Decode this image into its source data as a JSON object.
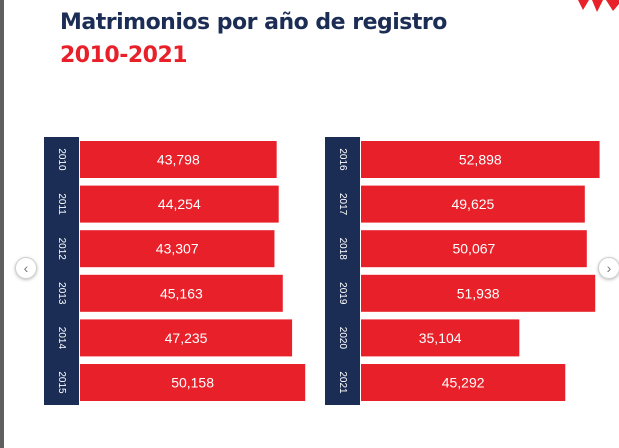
{
  "header": {
    "title": "Matrimonios por año de registro",
    "subtitle": "2010-2021"
  },
  "colors": {
    "navy": "#1c2d55",
    "bar": "#e8202a",
    "year_text": "#ffffff",
    "value_text": "#ffffff"
  },
  "controls": {
    "prev_icon": "chevron-left-icon",
    "prev_glyph": "‹",
    "next_icon": "chevron-right-icon",
    "next_glyph": "›"
  },
  "chart_data": [
    {
      "type": "bar",
      "orientation": "horizontal",
      "categories": [
        "2010",
        "2011",
        "2012",
        "2013",
        "2014",
        "2015"
      ],
      "values": [
        43798,
        44254,
        43307,
        45163,
        47235,
        50158
      ],
      "value_labels": [
        "43,798",
        "44,254",
        "43,307",
        "45,163",
        "47,235",
        "50,158"
      ],
      "title": "",
      "xlabel": "",
      "ylabel": ""
    },
    {
      "type": "bar",
      "orientation": "horizontal",
      "categories": [
        "2016",
        "2017",
        "2018",
        "2019",
        "2020",
        "2021"
      ],
      "values": [
        52898,
        49625,
        50067,
        51938,
        35104,
        45292
      ],
      "value_labels": [
        "52,898",
        "49,625",
        "50,067",
        "51,938",
        "35,104",
        "45,292"
      ],
      "title": "",
      "xlabel": "",
      "ylabel": ""
    }
  ]
}
